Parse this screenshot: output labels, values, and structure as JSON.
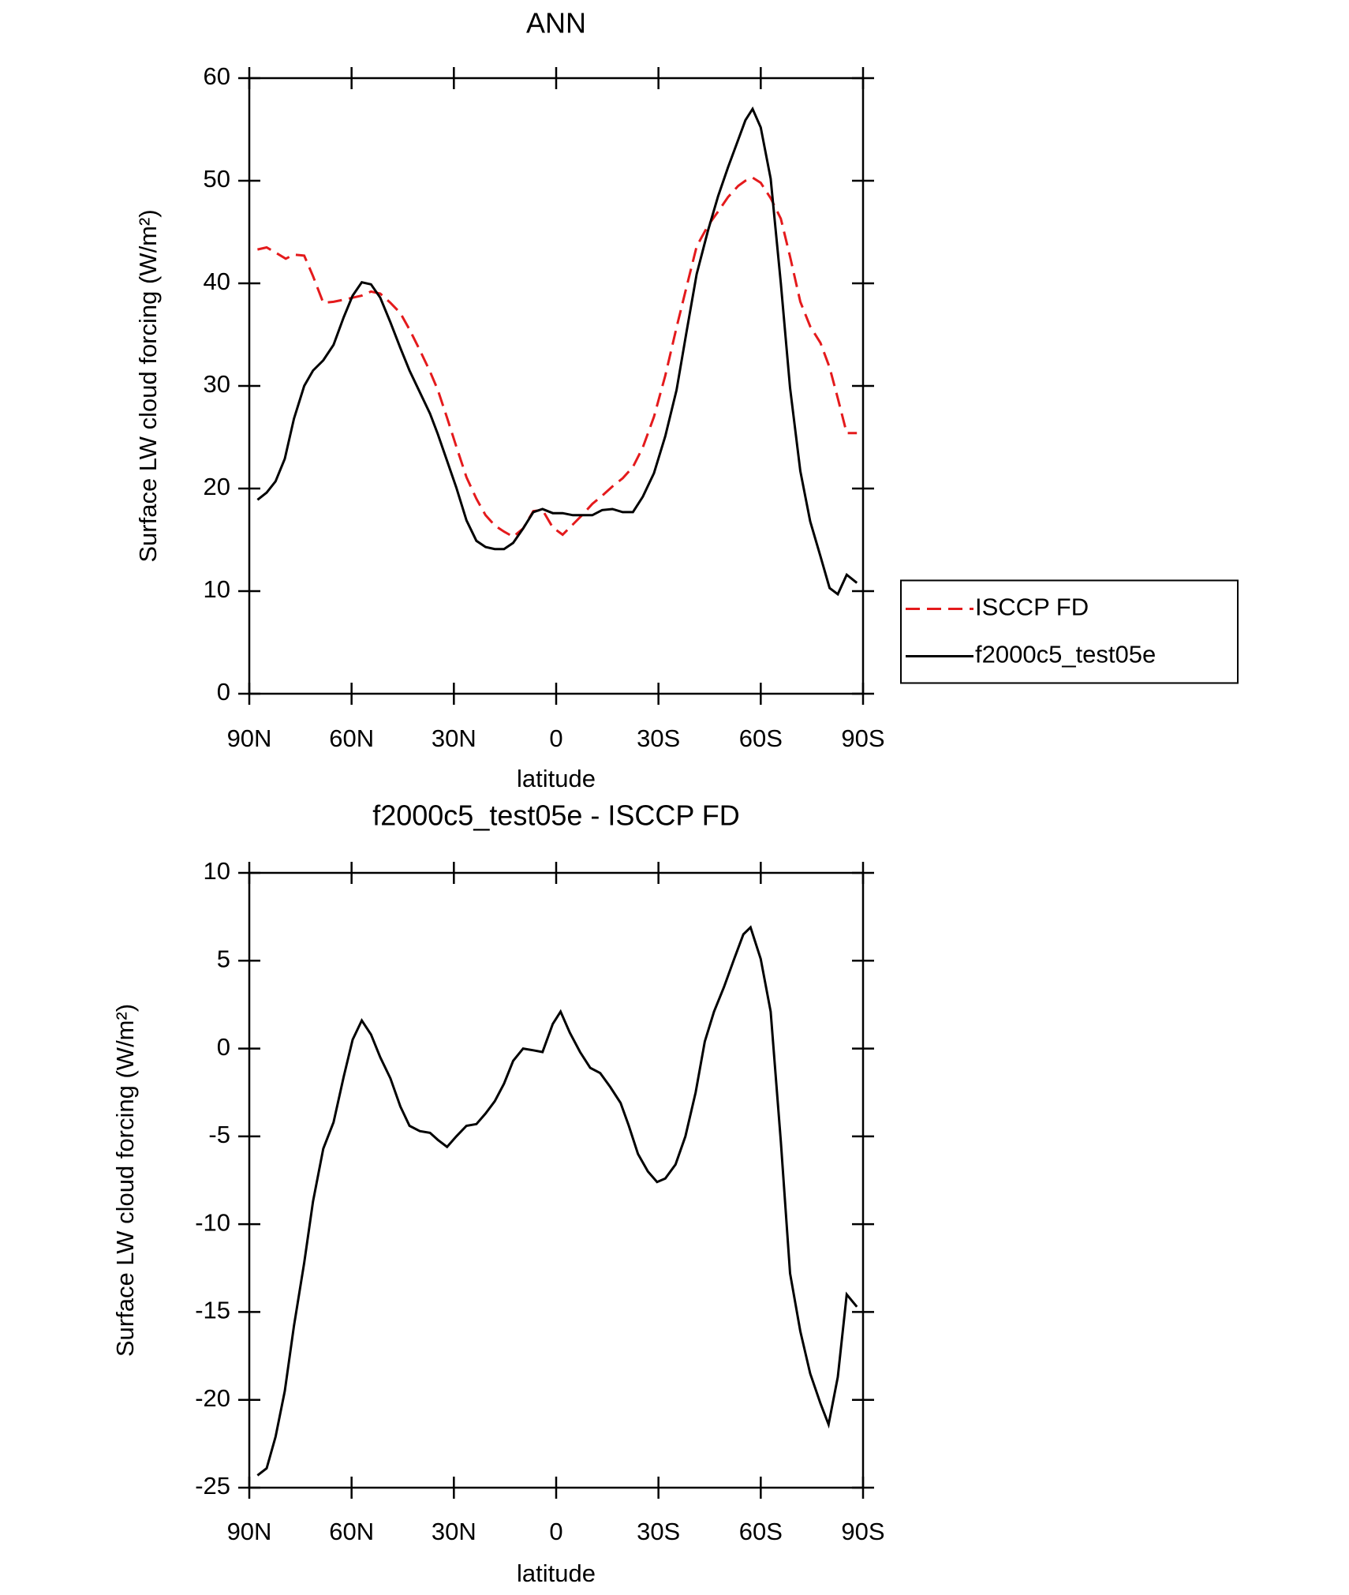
{
  "chart_data": [
    {
      "type": "line",
      "title": "ANN",
      "xlabel": "latitude",
      "ylabel": "Surface LW cloud forcing (W/m²)",
      "xlim": [
        90,
        -90
      ],
      "ylim": [
        0,
        60
      ],
      "xticks": [
        {
          "value": 90,
          "label": "90N"
        },
        {
          "value": 60,
          "label": "60N"
        },
        {
          "value": 30,
          "label": "30N"
        },
        0,
        {
          "value": -30,
          "label": "30S"
        },
        {
          "value": -60,
          "label": "60S"
        },
        {
          "value": -90,
          "label": "90S"
        }
      ],
      "yticks": [
        0,
        10,
        20,
        30,
        40,
        50,
        60
      ],
      "legend": "right",
      "series": [
        {
          "name": "ISCCP FD",
          "color": "#e41a1c",
          "dash": true,
          "x": [
            87.6,
            84.9,
            82.3,
            79.3,
            76.9,
            73.9,
            71.3,
            68.3,
            65.3,
            62.3,
            59.7,
            57.0,
            54.3,
            51.6,
            48.6,
            45.7,
            43.0,
            40.0,
            37.0,
            34.7,
            32.0,
            29.3,
            26.3,
            23.4,
            20.7,
            18.0,
            15.3,
            12.6,
            9.7,
            6.7,
            4.0,
            1.0,
            -1.9,
            -4.9,
            -7.9,
            -10.6,
            -13.5,
            -16.5,
            -19.5,
            -22.5,
            -25.4,
            -28.7,
            -32.0,
            -35.3,
            -38.2,
            -41.2,
            -44.5,
            -47.5,
            -50.4,
            -53.4,
            -55.5,
            -57.6,
            -60.0,
            -62.9,
            -65.9,
            -68.6,
            -71.6,
            -74.5,
            -77.5,
            -80.2,
            -82.6,
            -85.2,
            -88.2
          ],
          "values": [
            43.3,
            43.5,
            43.0,
            42.4,
            42.8,
            42.7,
            40.7,
            38.1,
            38.2,
            38.4,
            38.6,
            38.8,
            39.2,
            39.0,
            38.1,
            37.1,
            35.5,
            33.5,
            31.4,
            29.6,
            26.9,
            24.1,
            21.1,
            19.0,
            17.4,
            16.4,
            15.8,
            15.3,
            16.1,
            17.8,
            17.9,
            16.2,
            15.5,
            16.5,
            17.5,
            18.5,
            19.3,
            20.2,
            21.0,
            22.1,
            24.0,
            27.0,
            31.0,
            35.7,
            39.6,
            43.6,
            45.6,
            47.0,
            48.4,
            49.5,
            50.0,
            50.3,
            49.8,
            48.3,
            46.3,
            42.6,
            38.2,
            35.8,
            34.2,
            31.8,
            28.8,
            25.4,
            25.4
          ]
        },
        {
          "name": "f2000c5_test05e",
          "color": "#000000",
          "dash": false,
          "x": [
            87.6,
            84.9,
            82.3,
            79.6,
            76.9,
            73.9,
            71.3,
            68.3,
            65.3,
            62.3,
            59.7,
            57.0,
            54.3,
            51.6,
            48.6,
            45.7,
            43.0,
            40.0,
            37.0,
            34.7,
            32.0,
            29.3,
            26.3,
            23.4,
            20.7,
            18.0,
            15.3,
            12.6,
            9.7,
            6.7,
            4.0,
            1.0,
            -1.9,
            -4.9,
            -7.9,
            -10.6,
            -13.5,
            -16.5,
            -19.5,
            -22.5,
            -25.4,
            -28.7,
            -32.0,
            -35.3,
            -38.2,
            -41.2,
            -44.5,
            -47.5,
            -50.4,
            -53.4,
            -55.5,
            -57.6,
            -60.0,
            -62.9,
            -65.9,
            -68.6,
            -71.6,
            -74.5,
            -77.5,
            -80.2,
            -82.6,
            -85.2,
            -88.2
          ],
          "values": [
            18.9,
            19.6,
            20.7,
            22.9,
            26.8,
            30.0,
            31.5,
            32.5,
            34.0,
            36.7,
            38.8,
            40.1,
            39.9,
            38.6,
            36.2,
            33.7,
            31.5,
            29.4,
            27.3,
            25.3,
            22.7,
            20.1,
            16.9,
            14.9,
            14.3,
            14.1,
            14.1,
            14.7,
            16.1,
            17.7,
            18.0,
            17.6,
            17.6,
            17.4,
            17.4,
            17.4,
            17.9,
            18.0,
            17.7,
            17.7,
            19.2,
            21.5,
            25.1,
            29.6,
            35.2,
            40.9,
            45.1,
            48.5,
            51.3,
            54.0,
            55.9,
            57.0,
            55.2,
            50.2,
            40.0,
            29.8,
            21.7,
            16.8,
            13.4,
            10.3,
            9.7,
            11.6,
            10.8
          ]
        }
      ]
    },
    {
      "type": "line",
      "title": "f2000c5_test05e - ISCCP FD",
      "xlabel": "latitude",
      "ylabel": "Surface LW cloud forcing (W/m²)",
      "xlim": [
        90,
        -90
      ],
      "ylim": [
        -25,
        10
      ],
      "xticks": [
        {
          "value": 90,
          "label": "90N"
        },
        {
          "value": 60,
          "label": "60N"
        },
        {
          "value": 30,
          "label": "30N"
        },
        0,
        {
          "value": -30,
          "label": "30S"
        },
        {
          "value": -60,
          "label": "60S"
        },
        {
          "value": -90,
          "label": "90S"
        }
      ],
      "yticks": [
        -25,
        -20,
        -15,
        -10,
        -5,
        0,
        5,
        10
      ],
      "series": [
        {
          "color": "#000000",
          "dash": false,
          "x": [
            87.6,
            84.9,
            82.3,
            79.6,
            76.9,
            73.9,
            71.3,
            68.3,
            65.3,
            62.3,
            59.7,
            57.0,
            54.3,
            51.6,
            48.6,
            45.7,
            43.0,
            40.0,
            37.0,
            34.7,
            32.0,
            29.3,
            26.3,
            23.4,
            20.7,
            18.0,
            15.3,
            12.6,
            9.7,
            6.7,
            4.0,
            1.0,
            -1.3,
            -4.0,
            -7.0,
            -10.0,
            -12.9,
            -15.9,
            -18.9,
            -21.3,
            -24.0,
            -26.9,
            -29.6,
            -32.0,
            -35.0,
            -37.9,
            -40.9,
            -43.6,
            -46.3,
            -49.2,
            -52.2,
            -54.9,
            -57.0,
            -60.0,
            -62.9,
            -65.9,
            -68.6,
            -71.6,
            -74.5,
            -77.5,
            -79.9,
            -82.6,
            -85.2,
            -88.2
          ],
          "values": [
            -24.3,
            -23.9,
            -22.1,
            -19.5,
            -15.8,
            -12.2,
            -8.7,
            -5.7,
            -4.2,
            -1.6,
            0.5,
            1.6,
            0.8,
            -0.5,
            -1.7,
            -3.3,
            -4.4,
            -4.7,
            -4.8,
            -5.2,
            -5.6,
            -5.0,
            -4.4,
            -4.3,
            -3.7,
            -3.0,
            -2.0,
            -0.7,
            0.0,
            -0.1,
            -0.2,
            1.4,
            2.1,
            0.9,
            -0.2,
            -1.1,
            -1.4,
            -2.2,
            -3.1,
            -4.4,
            -6.0,
            -7.0,
            -7.6,
            -7.4,
            -6.6,
            -5.0,
            -2.5,
            0.4,
            2.1,
            3.5,
            5.1,
            6.5,
            6.9,
            5.1,
            2.1,
            -5.3,
            -12.8,
            -16.1,
            -18.5,
            -20.2,
            -21.4,
            -18.7,
            -14.0,
            -14.7
          ]
        }
      ]
    }
  ]
}
